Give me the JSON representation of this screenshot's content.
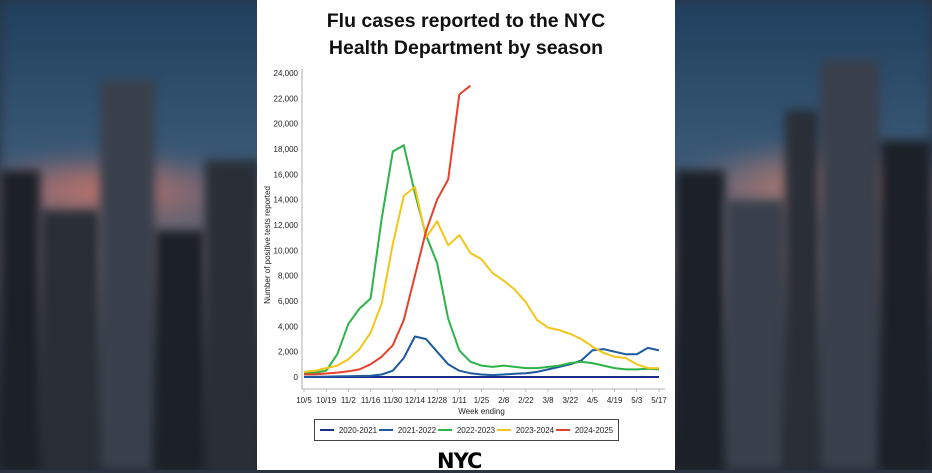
{
  "title_line1": "Flu cases reported to the NYC",
  "title_line2": "Health Department by season",
  "logo_text": "NYC",
  "chart_data": {
    "type": "line",
    "ylabel": "Number of positive tests reported",
    "xlabel": "Week ending",
    "ylim": [
      0,
      24000
    ],
    "yticks": [
      "0",
      "2,000",
      "4,000",
      "6,000",
      "8,000",
      "10,000",
      "12,000",
      "14,000",
      "16,000",
      "18,000",
      "20,000",
      "22,000",
      "24,000"
    ],
    "ytick_values": [
      0,
      2000,
      4000,
      6000,
      8000,
      10000,
      12000,
      14000,
      16000,
      18000,
      20000,
      22000,
      24000
    ],
    "x_tick_labels": [
      "10/5",
      "10/19",
      "11/2",
      "11/16",
      "11/30",
      "12/14",
      "12/28",
      "1/11",
      "1/25",
      "2/8",
      "2/22",
      "3/8",
      "3/22",
      "4/5",
      "4/19",
      "5/3",
      "5/17"
    ],
    "grid": false,
    "legend_position": "bottom",
    "series": [
      {
        "name": "2020-2021",
        "color": "#1f2b8a",
        "values": [
          0,
          0,
          0,
          0,
          0,
          0,
          0,
          0,
          0,
          0,
          0,
          0,
          0,
          0,
          0,
          0,
          0,
          0,
          0,
          0,
          0,
          0,
          0,
          0,
          0,
          0,
          0,
          0,
          0,
          0,
          0,
          0,
          0
        ]
      },
      {
        "name": "2021-2022",
        "color": "#1d5a9e",
        "values": [
          0,
          20,
          30,
          50,
          60,
          80,
          100,
          200,
          500,
          1500,
          3200,
          3000,
          2000,
          1000,
          500,
          300,
          200,
          150,
          200,
          250,
          300,
          400,
          600,
          800,
          1000,
          1300,
          2100,
          2200,
          2000,
          1800,
          1800,
          2300,
          2100
        ]
      },
      {
        "name": "2022-2023",
        "color": "#2db34a",
        "values": [
          300,
          350,
          500,
          1800,
          4200,
          5400,
          6200,
          12500,
          17800,
          18300,
          14500,
          11200,
          9000,
          4600,
          2100,
          1200,
          900,
          800,
          900,
          800,
          700,
          700,
          800,
          900,
          1100,
          1200,
          1100,
          900,
          700,
          600,
          600,
          650,
          600
        ]
      },
      {
        "name": "2023-2024",
        "color": "#f5c518",
        "values": [
          400,
          500,
          700,
          900,
          1400,
          2200,
          3500,
          5800,
          10500,
          14300,
          15000,
          11000,
          12300,
          10400,
          11200,
          9800,
          9300,
          8200,
          7600,
          6900,
          5900,
          4500,
          3900,
          3700,
          3400,
          3000,
          2400,
          1900,
          1600,
          1500,
          1000,
          700,
          700
        ]
      },
      {
        "name": "2024-2025",
        "color": "#e8402a",
        "values": [
          200,
          220,
          280,
          350,
          450,
          600,
          1000,
          1600,
          2500,
          4500,
          8000,
          11500,
          14000,
          15600,
          22300,
          23000
        ]
      }
    ]
  }
}
